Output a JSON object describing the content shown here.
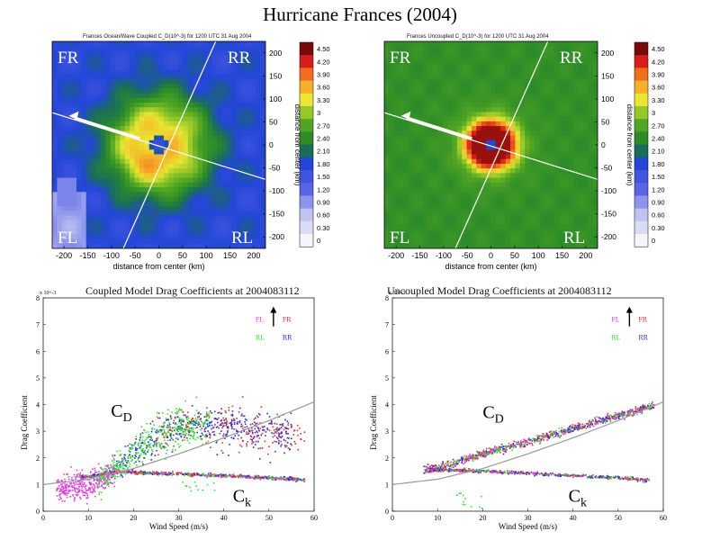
{
  "figure_title": "Hurricane Frances (2004)",
  "colors": {
    "map_background_coupled": "#1f4fd8",
    "map_background_uncoupled": "#3a8a22",
    "fl": "#e23be2",
    "fr": "#e03030",
    "rl": "#2ee52e",
    "rr": "#2b2bd6",
    "fit_curve": "#999999"
  },
  "chart_data": [
    {
      "type": "heatmap",
      "title": "Frances Ocean/Wave Coupled C_D(10^-3) for 1200 UTC 31 Aug 2004",
      "xlabel": "distance from center (km)",
      "ylabel": "distance from center (km)",
      "xlim": [
        -225,
        225
      ],
      "ylim": [
        -225,
        225
      ],
      "x_ticks": [
        -200,
        -150,
        -100,
        -50,
        0,
        50,
        100,
        150,
        200
      ],
      "y_ticks": [
        200,
        150,
        100,
        50,
        0,
        -50,
        -100,
        -150,
        -200
      ],
      "quadrant_labels": [
        "FR",
        "RR",
        "FL",
        "RL"
      ],
      "colorbar_labels": [
        "4.50",
        "4.20",
        "3.90",
        "3.60",
        "3.30",
        "3",
        "2.70",
        "2.40",
        "2.10",
        "1.80",
        "1.50",
        "1.20",
        "0.90",
        "0.60",
        "0.30",
        "0"
      ],
      "colorbar_range": [
        0,
        4.5
      ]
    },
    {
      "type": "heatmap",
      "title": "Frances Uncoupled C_D(10^-3) for 1200 UTC 31 Aug 2004",
      "xlabel": "distance from center (km)",
      "ylabel": "distance from center (km)",
      "xlim": [
        -225,
        225
      ],
      "ylim": [
        -225,
        225
      ],
      "x_ticks": [
        -200,
        -150,
        -100,
        -50,
        0,
        50,
        100,
        150,
        200
      ],
      "y_ticks": [
        200,
        150,
        100,
        50,
        0,
        -50,
        -100,
        -150,
        -200
      ],
      "quadrant_labels": [
        "FR",
        "RR",
        "FL",
        "RL"
      ],
      "colorbar_labels": [
        "4.50",
        "4.20",
        "3.90",
        "3.60",
        "3.30",
        "3",
        "2.70",
        "2.40",
        "2.10",
        "1.80",
        "1.50",
        "1.20",
        "0.90",
        "0.60",
        "0.30",
        "0"
      ],
      "colorbar_range": [
        0,
        4.5
      ]
    },
    {
      "type": "scatter",
      "title": "Coupled Model Drag Coefficients at 2004083112",
      "xlabel": "Wind Speed (m/s)",
      "ylabel": "Drag Coefficient",
      "xlim": [
        0,
        60
      ],
      "ylim": [
        0,
        8
      ],
      "x_ticks": [
        0,
        10,
        20,
        30,
        40,
        50,
        60
      ],
      "y_ticks": [
        0,
        1,
        2,
        3,
        4,
        5,
        6,
        7,
        8
      ],
      "y_multiplier": "x 10^-3",
      "legend": [
        "FL",
        "FR",
        "RL",
        "RR"
      ],
      "annotations": [
        "C_D",
        "C_k"
      ],
      "series": [
        {
          "name": "C_D (scatter center)",
          "x": [
            5,
            10,
            15,
            20,
            25,
            30,
            35,
            40,
            45,
            50,
            55,
            58
          ],
          "y": [
            0.9,
            1.0,
            1.4,
            2.2,
            2.8,
            3.1,
            3.2,
            3.2,
            3.1,
            3.0,
            2.9,
            2.9
          ]
        },
        {
          "name": "C_k (scatter center)",
          "x": [
            10,
            15,
            20,
            30,
            40,
            50,
            58
          ],
          "y": [
            1.3,
            1.45,
            1.45,
            1.4,
            1.33,
            1.25,
            1.18
          ]
        },
        {
          "name": "fit curve",
          "x": [
            0,
            10,
            20,
            30,
            40,
            50,
            60
          ],
          "y": [
            1.0,
            1.2,
            1.6,
            2.15,
            2.75,
            3.4,
            4.1
          ]
        }
      ]
    },
    {
      "type": "scatter",
      "title": "Uncoupled Model Drag Coefficients at 2004083112",
      "xlabel": "Wind Speed (m/s)",
      "ylabel": "Drag Coefficient",
      "xlim": [
        0,
        60
      ],
      "ylim": [
        0,
        8
      ],
      "x_ticks": [
        0,
        10,
        20,
        30,
        40,
        50,
        60
      ],
      "y_ticks": [
        0,
        1,
        2,
        3,
        4,
        5,
        6,
        7,
        8
      ],
      "y_multiplier": "x 10^-3",
      "legend": [
        "FL",
        "FR",
        "RL",
        "RR"
      ],
      "annotations": [
        "C_D",
        "C_k"
      ],
      "series": [
        {
          "name": "C_D (scatter center)",
          "x": [
            8,
            10,
            20,
            30,
            40,
            50,
            58
          ],
          "y": [
            1.6,
            1.6,
            2.15,
            2.6,
            3.1,
            3.6,
            3.95
          ]
        },
        {
          "name": "C_k (scatter center)",
          "x": [
            8,
            10,
            20,
            30,
            40,
            50,
            58
          ],
          "y": [
            1.5,
            1.55,
            1.5,
            1.42,
            1.33,
            1.25,
            1.15
          ]
        },
        {
          "name": "fit curve",
          "x": [
            0,
            10,
            20,
            30,
            40,
            50,
            60
          ],
          "y": [
            1.0,
            1.2,
            1.6,
            2.15,
            2.75,
            3.4,
            4.1
          ]
        }
      ]
    }
  ]
}
